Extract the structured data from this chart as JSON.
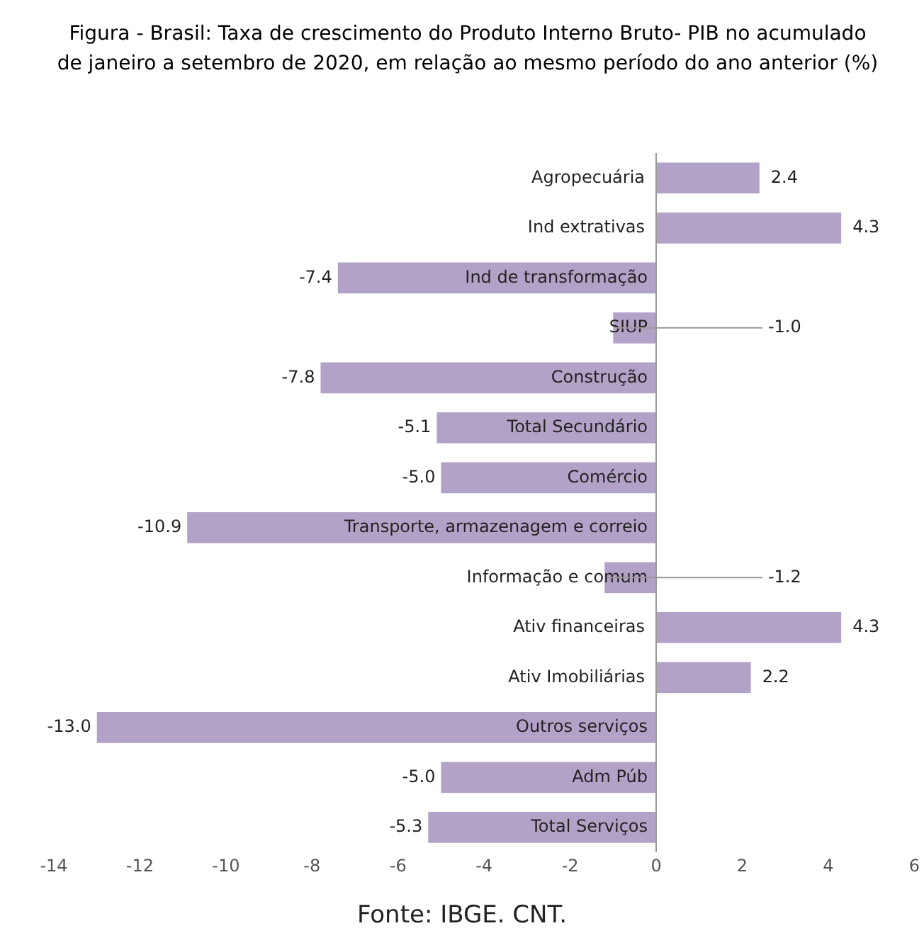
{
  "chart_data": {
    "type": "bar",
    "orientation": "horizontal",
    "title": "Figura - Brasil: Taxa de crescimento do Produto Interno Bruto- PIB no acumulado de janeiro a setembro de 2020, em relação ao mesmo período do ano anterior (%)",
    "categories": [
      "Agropecuária",
      "Ind extrativas",
      "Ind de transformação",
      "SIUP",
      "Construção",
      "Total Secundário",
      "Comércio",
      "Transporte, armazenagem e correio",
      "Informação e comum",
      "Ativ financeiras",
      "Ativ Imobiliárias",
      "Outros serviços",
      "Adm Púb",
      "Total Serviços"
    ],
    "values": [
      2.4,
      4.3,
      -7.4,
      -1.0,
      -7.8,
      -5.1,
      -5.0,
      -10.9,
      -1.2,
      4.3,
      2.2,
      -13.0,
      -5.0,
      -5.3
    ],
    "value_labels": [
      "2.4",
      "4.3",
      "-7.4",
      "-1.0",
      "-7.8",
      "-5.1",
      "-5.0",
      "-10.9",
      "-1.2",
      "4.3",
      "2.2",
      "-13.0",
      "-5.0",
      "-5.3"
    ],
    "color": "#b3a2c7",
    "xlim": [
      -14,
      6
    ],
    "xticks": [
      -14,
      -12,
      -10,
      -8,
      -6,
      -4,
      -2,
      0,
      2,
      4,
      6
    ],
    "annotations": [
      "Fonte: IBGE. CNT."
    ]
  }
}
